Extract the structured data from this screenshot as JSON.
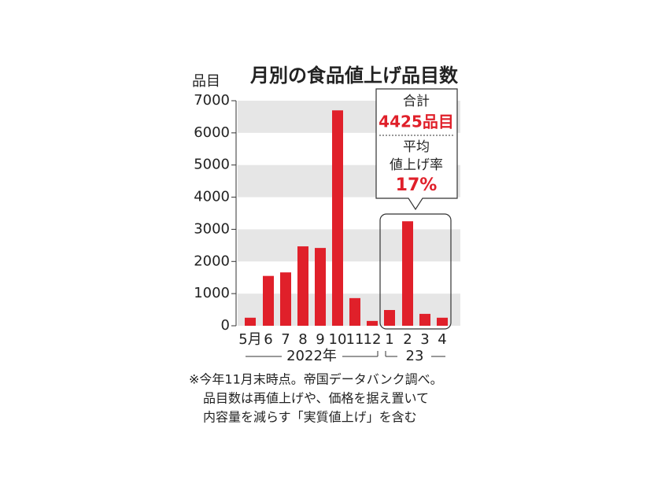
{
  "chart_data": {
    "type": "bar",
    "title": "月別の食品値上げ品目数",
    "y_label": "品目",
    "categories": [
      "5月",
      "6",
      "7",
      "8",
      "9",
      "10",
      "11",
      "12",
      "1",
      "2",
      "3",
      "4"
    ],
    "values": [
      250,
      1550,
      1660,
      2470,
      2420,
      6700,
      860,
      150,
      490,
      3250,
      370,
      250
    ],
    "color": "#e0202a",
    "ylim": [
      0,
      7000
    ],
    "yticks": [
      0,
      1000,
      2000,
      3000,
      4000,
      5000,
      6000,
      7000
    ],
    "groups": [
      "2022年",
      "23"
    ],
    "callout": {
      "total_label": "合計",
      "total": "4425品目",
      "avg_label_1": "平均",
      "avg_label_2": "値上げ率",
      "avg": "17%"
    },
    "notes": [
      "※今年11月末時点。帝国データバンク調べ。",
      "品目数は再値上げや、価格を据え置いて",
      "内容量を減らす「実質値上げ」を含む"
    ]
  }
}
